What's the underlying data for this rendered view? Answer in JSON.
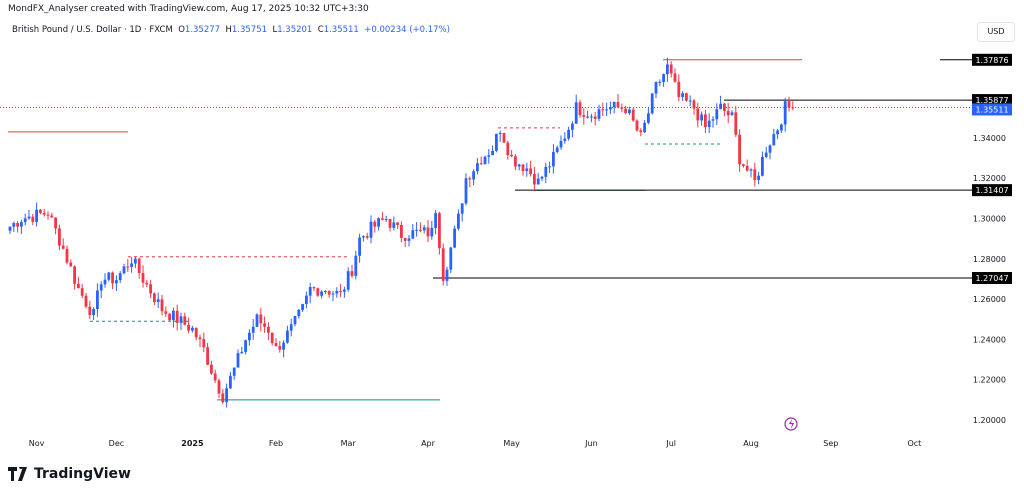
{
  "credit": "MondFX_Analyser created with TradingView.com, Aug 17, 2025 10:32 UTC+3:30",
  "legend": {
    "symbol": "British Pound / U.S. Dollar · 1D · FXCM",
    "o_label": "O",
    "o": "1.35277",
    "h_label": "H",
    "h": "1.35751",
    "l_label": "L",
    "l": "1.35201",
    "c_label": "C",
    "c": "1.35511",
    "change": "+0.00234 (+0.17%)"
  },
  "currency": "USD",
  "logo_text": "TradingView",
  "colors": {
    "up": "#2962ff",
    "down": "#f23645",
    "level": "#000000",
    "green": "#089981",
    "red": "#f23645",
    "current": "#2962ff"
  },
  "chart_data": {
    "type": "candlestick",
    "title": "British Pound / U.S. Dollar · 1D · FXCM",
    "y_ticks": [
      "1.20000",
      "1.22000",
      "1.24000",
      "1.26000",
      "1.28000",
      "1.30000",
      "1.32000",
      "1.34000"
    ],
    "ylim": [
      1.19,
      1.39
    ],
    "x_ticks": [
      {
        "label": "Nov",
        "i": 7
      },
      {
        "label": "Dec",
        "i": 28
      },
      {
        "label": "2025",
        "i": 48,
        "bold": true
      },
      {
        "label": "Feb",
        "i": 70
      },
      {
        "label": "Mar",
        "i": 89
      },
      {
        "label": "Apr",
        "i": 110
      },
      {
        "label": "May",
        "i": 132
      },
      {
        "label": "Jun",
        "i": 153
      },
      {
        "label": "Jul",
        "i": 174
      },
      {
        "label": "Aug",
        "i": 195
      },
      {
        "label": "Sep",
        "i": 216
      },
      {
        "label": "Oct",
        "i": 238
      }
    ],
    "candle_count": 207,
    "close_path": [
      [
        0,
        1.296
      ],
      [
        3,
        1.3
      ],
      [
        10,
        1.303
      ],
      [
        14,
        1.285
      ],
      [
        18,
        1.265
      ],
      [
        22,
        1.252
      ],
      [
        24,
        1.27
      ],
      [
        28,
        1.27
      ],
      [
        32,
        1.28
      ],
      [
        35,
        1.27
      ],
      [
        40,
        1.255
      ],
      [
        44,
        1.25
      ],
      [
        48,
        1.245
      ],
      [
        51,
        1.235
      ],
      [
        54,
        1.22
      ],
      [
        56,
        1.212
      ],
      [
        59,
        1.225
      ],
      [
        62,
        1.24
      ],
      [
        65,
        1.25
      ],
      [
        68,
        1.245
      ],
      [
        70,
        1.235
      ],
      [
        74,
        1.245
      ],
      [
        77,
        1.255
      ],
      [
        79,
        1.265
      ],
      [
        83,
        1.265
      ],
      [
        87,
        1.262
      ],
      [
        90,
        1.275
      ],
      [
        92,
        1.29
      ],
      [
        95,
        1.295
      ],
      [
        99,
        1.3
      ],
      [
        103,
        1.292
      ],
      [
        107,
        1.293
      ],
      [
        111,
        1.293
      ],
      [
        112,
        1.305
      ],
      [
        114,
        1.272
      ],
      [
        115,
        1.278
      ],
      [
        118,
        1.3
      ],
      [
        120,
        1.32
      ],
      [
        124,
        1.33
      ],
      [
        127,
        1.335
      ],
      [
        129,
        1.345
      ],
      [
        132,
        1.33
      ],
      [
        136,
        1.325
      ],
      [
        139,
        1.318
      ],
      [
        143,
        1.33
      ],
      [
        147,
        1.345
      ],
      [
        149,
        1.355
      ],
      [
        153,
        1.352
      ],
      [
        157,
        1.355
      ],
      [
        162,
        1.355
      ],
      [
        166,
        1.34
      ],
      [
        170,
        1.365
      ],
      [
        173,
        1.375
      ],
      [
        176,
        1.36
      ],
      [
        180,
        1.355
      ],
      [
        183,
        1.345
      ],
      [
        187,
        1.355
      ],
      [
        190,
        1.35
      ],
      [
        192,
        1.33
      ],
      [
        196,
        1.318
      ],
      [
        199,
        1.335
      ],
      [
        202,
        1.345
      ],
      [
        204,
        1.355
      ],
      [
        206,
        1.3551
      ]
    ],
    "levels": [
      {
        "price": 1.37876,
        "label": "1.37876"
      },
      {
        "price": 1.35877,
        "label": "1.35877"
      },
      {
        "price": 1.31407,
        "label": "1.31407"
      },
      {
        "price": 1.27047,
        "label": "1.27047"
      }
    ],
    "current_price": {
      "price": 1.35511,
      "label": "1.35511"
    }
  }
}
